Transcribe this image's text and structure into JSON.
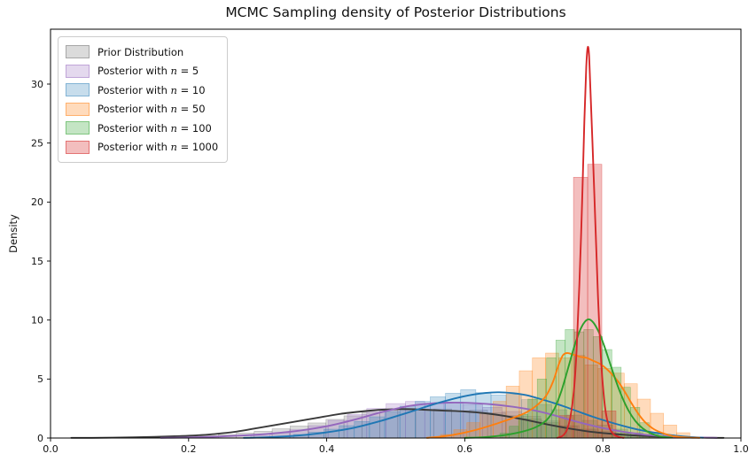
{
  "figure": {
    "title": "MCMC Sampling density of Posterior Distributions",
    "ylabel": "Density"
  },
  "chart_data": {
    "type": "kde+histogram",
    "title": "MCMC Sampling density of Posterior Distributions",
    "xlabel": "",
    "ylabel": "Density",
    "xlim": [
      0.0,
      1.0
    ],
    "ylim": [
      0,
      34.65
    ],
    "xticks": [
      0.0,
      0.2,
      0.4,
      0.6,
      0.8,
      1.0
    ],
    "xtick_labels": [
      "0.0",
      "0.2",
      "0.4",
      "0.6",
      "0.8",
      "1.0"
    ],
    "yticks": [
      0,
      5,
      10,
      15,
      20,
      25,
      30
    ],
    "ytick_labels": [
      "0",
      "5",
      "10",
      "15",
      "20",
      "25",
      "30"
    ],
    "grid": false,
    "legend_position": "upper left",
    "series": [
      {
        "id": "prior",
        "legend": {
          "prefix": "Prior Distribution",
          "math_var": "",
          "math_rest": ""
        },
        "color": "#3a3a3a",
        "fill": "rgba(127,127,127,0.28)",
        "edge": "rgba(105,105,105,0.45)",
        "kde_peak": {
          "x": 0.51,
          "density": 2.45
        },
        "kde": [
          [
            0.03,
            0
          ],
          [
            0.06,
            0.01
          ],
          [
            0.09,
            0.03
          ],
          [
            0.12,
            0.06
          ],
          [
            0.15,
            0.1
          ],
          [
            0.18,
            0.15
          ],
          [
            0.21,
            0.22
          ],
          [
            0.24,
            0.35
          ],
          [
            0.27,
            0.55
          ],
          [
            0.3,
            0.85
          ],
          [
            0.33,
            1.15
          ],
          [
            0.36,
            1.45
          ],
          [
            0.39,
            1.75
          ],
          [
            0.42,
            2.05
          ],
          [
            0.45,
            2.25
          ],
          [
            0.48,
            2.4
          ],
          [
            0.51,
            2.45
          ],
          [
            0.54,
            2.4
          ],
          [
            0.57,
            2.32
          ],
          [
            0.6,
            2.25
          ],
          [
            0.63,
            2.1
          ],
          [
            0.66,
            1.85
          ],
          [
            0.69,
            1.52
          ],
          [
            0.72,
            1.15
          ],
          [
            0.75,
            0.82
          ],
          [
            0.78,
            0.55
          ],
          [
            0.81,
            0.37
          ],
          [
            0.84,
            0.24
          ],
          [
            0.87,
            0.15
          ],
          [
            0.9,
            0.09
          ],
          [
            0.93,
            0.05
          ],
          [
            0.96,
            0.02
          ],
          [
            0.975,
            0.01
          ]
        ],
        "hist": {
          "bin_start": 0.165,
          "bin_width": 0.026,
          "heights": [
            0.08,
            0.14,
            0.2,
            0.28,
            0.42,
            0.58,
            0.78,
            1.02,
            1.28,
            1.58,
            1.88,
            2.18,
            2.35,
            2.52,
            2.42,
            2.46,
            2.3,
            2.36,
            2.14,
            1.9,
            1.62,
            1.3,
            1.02,
            0.76,
            0.56,
            0.4,
            0.27,
            0.17,
            0.1,
            0.05
          ]
        }
      },
      {
        "id": "n5",
        "legend": {
          "prefix": "Posterior with ",
          "math_var": "n",
          "math_rest": " = 5"
        },
        "color": "#9467bd",
        "fill": "rgba(148,103,189,0.25)",
        "edge": "rgba(148,103,189,0.45)",
        "kde_peak": {
          "x": 0.58,
          "density": 3.0
        },
        "kde": [
          [
            0.16,
            0
          ],
          [
            0.2,
            0.05
          ],
          [
            0.24,
            0.12
          ],
          [
            0.28,
            0.22
          ],
          [
            0.32,
            0.38
          ],
          [
            0.36,
            0.62
          ],
          [
            0.4,
            1.0
          ],
          [
            0.44,
            1.55
          ],
          [
            0.48,
            2.2
          ],
          [
            0.52,
            2.72
          ],
          [
            0.55,
            2.92
          ],
          [
            0.58,
            3.0
          ],
          [
            0.61,
            2.97
          ],
          [
            0.64,
            2.85
          ],
          [
            0.67,
            2.65
          ],
          [
            0.7,
            2.35
          ],
          [
            0.73,
            1.92
          ],
          [
            0.76,
            1.42
          ],
          [
            0.79,
            0.98
          ],
          [
            0.82,
            0.62
          ],
          [
            0.85,
            0.36
          ],
          [
            0.88,
            0.19
          ],
          [
            0.91,
            0.09
          ],
          [
            0.94,
            0.04
          ],
          [
            0.965,
            0.01
          ]
        ],
        "hist": {
          "bin_start": 0.29,
          "bin_width": 0.028,
          "heights": [
            0.22,
            0.42,
            0.7,
            1.05,
            1.5,
            2.0,
            2.5,
            2.92,
            3.1,
            2.95,
            3.05,
            2.85,
            2.6,
            2.25,
            1.85,
            1.45,
            1.05,
            0.7,
            0.45,
            0.25,
            0.12
          ]
        }
      },
      {
        "id": "n10",
        "legend": {
          "prefix": "Posterior with ",
          "math_var": "n",
          "math_rest": " = 10"
        },
        "color": "#1f77b4",
        "fill": "rgba(31,119,180,0.25)",
        "edge": "rgba(31,119,180,0.40)",
        "kde_peak": {
          "x": 0.65,
          "density": 3.88
        },
        "kde": [
          [
            0.28,
            0
          ],
          [
            0.32,
            0.08
          ],
          [
            0.36,
            0.22
          ],
          [
            0.4,
            0.48
          ],
          [
            0.44,
            0.88
          ],
          [
            0.48,
            1.48
          ],
          [
            0.52,
            2.2
          ],
          [
            0.56,
            2.95
          ],
          [
            0.6,
            3.55
          ],
          [
            0.63,
            3.82
          ],
          [
            0.65,
            3.88
          ],
          [
            0.67,
            3.8
          ],
          [
            0.69,
            3.62
          ],
          [
            0.71,
            3.3
          ],
          [
            0.73,
            2.95
          ],
          [
            0.75,
            2.55
          ],
          [
            0.77,
            2.12
          ],
          [
            0.79,
            1.72
          ],
          [
            0.81,
            1.35
          ],
          [
            0.83,
            1.02
          ],
          [
            0.85,
            0.73
          ],
          [
            0.87,
            0.5
          ],
          [
            0.89,
            0.32
          ],
          [
            0.91,
            0.17
          ],
          [
            0.93,
            0.07
          ],
          [
            0.945,
            0.02
          ]
        ],
        "hist": {
          "bin_start": 0.33,
          "bin_width": 0.022,
          "heights": [
            0.15,
            0.3,
            0.5,
            0.75,
            1.05,
            1.4,
            1.8,
            2.25,
            2.7,
            3.1,
            3.5,
            3.8,
            4.1,
            3.85,
            3.65,
            3.7,
            3.25,
            2.85,
            2.4,
            1.95,
            1.5,
            1.1,
            0.75,
            0.45,
            0.22,
            0.08
          ]
        }
      },
      {
        "id": "n50",
        "legend": {
          "prefix": "Posterior with ",
          "math_var": "n",
          "math_rest": " = 50"
        },
        "color": "#ff7f0e",
        "fill": "rgba(255,127,14,0.28)",
        "edge": "rgba(255,127,14,0.45)",
        "kde_peak": {
          "x": 0.748,
          "density": 7.2
        },
        "kde": [
          [
            0.545,
            0
          ],
          [
            0.57,
            0.15
          ],
          [
            0.595,
            0.4
          ],
          [
            0.62,
            0.75
          ],
          [
            0.645,
            1.2
          ],
          [
            0.67,
            1.7
          ],
          [
            0.69,
            2.2
          ],
          [
            0.705,
            2.8
          ],
          [
            0.718,
            3.6
          ],
          [
            0.728,
            4.8
          ],
          [
            0.736,
            6.2
          ],
          [
            0.742,
            7.0
          ],
          [
            0.748,
            7.2
          ],
          [
            0.756,
            7.1
          ],
          [
            0.766,
            6.9
          ],
          [
            0.776,
            6.8
          ],
          [
            0.786,
            6.55
          ],
          [
            0.798,
            6.2
          ],
          [
            0.81,
            5.6
          ],
          [
            0.822,
            4.8
          ],
          [
            0.832,
            3.9
          ],
          [
            0.842,
            2.9
          ],
          [
            0.852,
            2.0
          ],
          [
            0.862,
            1.3
          ],
          [
            0.874,
            0.75
          ],
          [
            0.888,
            0.38
          ],
          [
            0.902,
            0.16
          ],
          [
            0.92,
            0.05
          ],
          [
            0.94,
            0.01
          ]
        ],
        "hist": {
          "bin_start": 0.565,
          "bin_width": 0.019,
          "heights": [
            0.3,
            0.7,
            1.3,
            2.1,
            3.1,
            4.4,
            5.7,
            6.8,
            7.2,
            6.8,
            7.0,
            6.2,
            5.9,
            5.5,
            4.6,
            3.3,
            2.1,
            1.1,
            0.45
          ]
        }
      },
      {
        "id": "n100",
        "legend": {
          "prefix": "Posterior with ",
          "math_var": "n",
          "math_rest": " = 100"
        },
        "color": "#2ca02c",
        "fill": "rgba(44,160,44,0.28)",
        "edge": "rgba(44,160,44,0.45)",
        "kde_peak": {
          "x": 0.778,
          "density": 10.05
        },
        "kde": [
          [
            0.6,
            0
          ],
          [
            0.63,
            0.08
          ],
          [
            0.658,
            0.25
          ],
          [
            0.684,
            0.55
          ],
          [
            0.704,
            0.95
          ],
          [
            0.719,
            1.55
          ],
          [
            0.73,
            2.5
          ],
          [
            0.74,
            4.0
          ],
          [
            0.75,
            6.0
          ],
          [
            0.76,
            8.0
          ],
          [
            0.769,
            9.4
          ],
          [
            0.778,
            10.05
          ],
          [
            0.786,
            9.8
          ],
          [
            0.794,
            9.0
          ],
          [
            0.802,
            7.8
          ],
          [
            0.81,
            6.4
          ],
          [
            0.818,
            5.0
          ],
          [
            0.827,
            3.6
          ],
          [
            0.837,
            2.35
          ],
          [
            0.847,
            1.45
          ],
          [
            0.858,
            0.8
          ],
          [
            0.871,
            0.35
          ],
          [
            0.885,
            0.12
          ],
          [
            0.9,
            0.03
          ]
        ],
        "hist": {
          "bin_start": 0.651,
          "bin_width": 0.0135,
          "heights": [
            0.4,
            1.0,
            2.0,
            3.3,
            5.0,
            6.8,
            8.3,
            9.2,
            9.0,
            9.2,
            8.6,
            7.5,
            6.0,
            4.3,
            2.6,
            1.3,
            0.5
          ]
        }
      },
      {
        "id": "n1000",
        "legend": {
          "prefix": "Posterior with ",
          "math_var": "n",
          "math_rest": " = 1000"
        },
        "color": "#d62728",
        "fill": "rgba(214,39,40,0.30)",
        "edge": "rgba(214,39,40,0.50)",
        "kde_peak": {
          "x": 0.778,
          "density": 33.1
        },
        "kde": [
          [
            0.734,
            0
          ],
          [
            0.742,
            0.2
          ],
          [
            0.748,
            0.7
          ],
          [
            0.753,
            1.8
          ],
          [
            0.758,
            4.0
          ],
          [
            0.762,
            7.5
          ],
          [
            0.766,
            13.0
          ],
          [
            0.77,
            20.0
          ],
          [
            0.773,
            26.5
          ],
          [
            0.776,
            31.5
          ],
          [
            0.778,
            33.1
          ],
          [
            0.78,
            32.5
          ],
          [
            0.782,
            29.5
          ],
          [
            0.785,
            25.0
          ],
          [
            0.789,
            18.5
          ],
          [
            0.793,
            12.0
          ],
          [
            0.797,
            7.0
          ],
          [
            0.801,
            3.8
          ],
          [
            0.805,
            1.9
          ],
          [
            0.81,
            0.8
          ],
          [
            0.816,
            0.3
          ],
          [
            0.824,
            0.08
          ],
          [
            0.83,
            0
          ]
        ],
        "hist": {
          "bin_start": 0.737,
          "bin_width": 0.0205,
          "heights": [
            1.9,
            22.1,
            23.2,
            2.3
          ]
        }
      }
    ]
  }
}
